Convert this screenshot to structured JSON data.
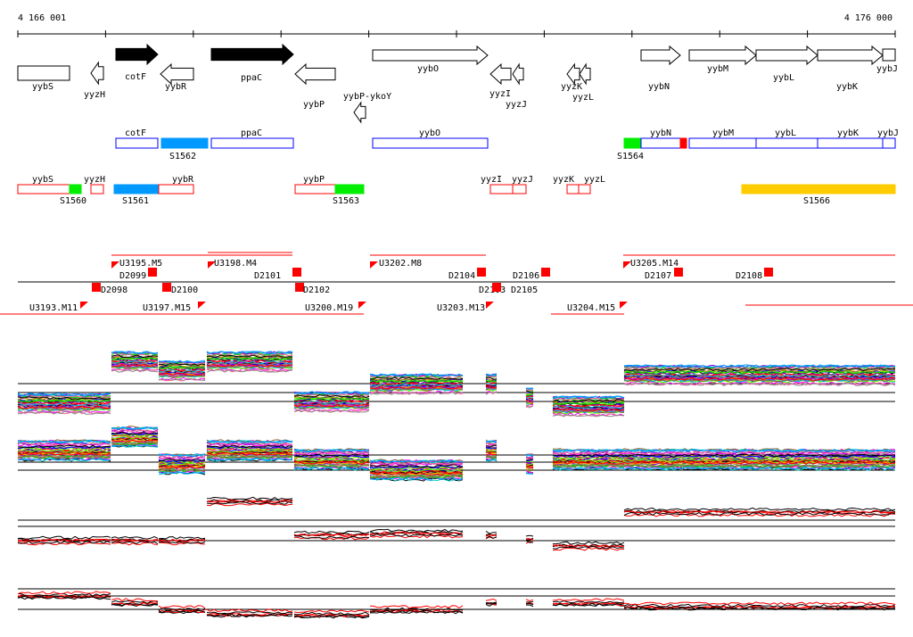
{
  "ruler": {
    "start_label": "4 166 001",
    "end_label": "4 176 000"
  },
  "genes": [
    {
      "name": "yybS",
      "strand": "-",
      "filled": false
    },
    {
      "name": "yyzH",
      "strand": "-",
      "filled": false
    },
    {
      "name": "cotF",
      "strand": "+",
      "filled": true
    },
    {
      "name": "yybR",
      "strand": "-",
      "filled": false
    },
    {
      "name": "ppaC",
      "strand": "+",
      "filled": true
    },
    {
      "name": "yybP",
      "strand": "-",
      "filled": false
    },
    {
      "name": "yybP-ykoY",
      "strand": "-",
      "filled": false
    },
    {
      "name": "yybO",
      "strand": "+",
      "filled": false
    },
    {
      "name": "yyzI",
      "strand": "-",
      "filled": false
    },
    {
      "name": "yyzJ",
      "strand": "-",
      "filled": false
    },
    {
      "name": "yyzK",
      "strand": "-",
      "filled": false
    },
    {
      "name": "yyzL",
      "strand": "-",
      "filled": false
    },
    {
      "name": "yybN",
      "strand": "+",
      "filled": false
    },
    {
      "name": "yybM",
      "strand": "+",
      "filled": false
    },
    {
      "name": "yybL",
      "strand": "+",
      "filled": false
    },
    {
      "name": "yybK",
      "strand": "+",
      "filled": false
    },
    {
      "name": "yybJ",
      "strand": "+",
      "filled": false
    }
  ],
  "plus_features": [
    {
      "name": "cotF",
      "kind": "gene"
    },
    {
      "name": "S1562",
      "kind": "segment",
      "color": "#0099ff"
    },
    {
      "name": "ppaC",
      "kind": "gene"
    },
    {
      "name": "yybO",
      "kind": "gene"
    },
    {
      "name": "S1564",
      "kind": "segment",
      "color": "#00ee00"
    },
    {
      "name": "yybN",
      "kind": "gene"
    },
    {
      "name": "",
      "kind": "segment",
      "color": "#ff0000"
    },
    {
      "name": "yybM",
      "kind": "gene"
    },
    {
      "name": "yybL",
      "kind": "gene"
    },
    {
      "name": "yybK",
      "kind": "gene"
    },
    {
      "name": "yybJ",
      "kind": "gene"
    }
  ],
  "minus_features": [
    {
      "name": "yybS",
      "kind": "gene"
    },
    {
      "name": "S1560",
      "kind": "segment",
      "color": "#00ee00"
    },
    {
      "name": "yyzH",
      "kind": "gene"
    },
    {
      "name": "S1561",
      "kind": "segment",
      "color": "#0099ff"
    },
    {
      "name": "yybR",
      "kind": "gene"
    },
    {
      "name": "yybP",
      "kind": "gene"
    },
    {
      "name": "S1563",
      "kind": "segment",
      "color": "#00ee00"
    },
    {
      "name": "yyzI",
      "kind": "gene"
    },
    {
      "name": "yyzJ",
      "kind": "gene"
    },
    {
      "name": "yyzK",
      "kind": "gene"
    },
    {
      "name": "yyzL",
      "kind": "gene"
    },
    {
      "name": "S1566",
      "kind": "segment",
      "color": "#ffcc00"
    }
  ],
  "regulatory_labels": [
    "U3195.M5",
    "D2099",
    "U3198.M4",
    "D2101",
    "U3202.M8",
    "D2104",
    "D2106",
    "U3205.M14",
    "D2107",
    "D2108",
    "U3193.M11",
    "D2098",
    "U3197.M15",
    "D2100",
    "D2102",
    "U3200.M19",
    "U3203.M13",
    "D2103",
    "D2105",
    "U3204.M15"
  ],
  "colors": {
    "plus_strand": "#0000ff",
    "minus_strand": "#ff0000",
    "marker": "#ff0000"
  },
  "profile_palette": [
    "#ff0000",
    "#00cc00",
    "#0000ff",
    "#ff00ff",
    "#00cccc",
    "#ffaa00",
    "#888888",
    "#9900cc",
    "#66ff00",
    "#ff6699",
    "#0099ff",
    "#996633",
    "#000000"
  ]
}
